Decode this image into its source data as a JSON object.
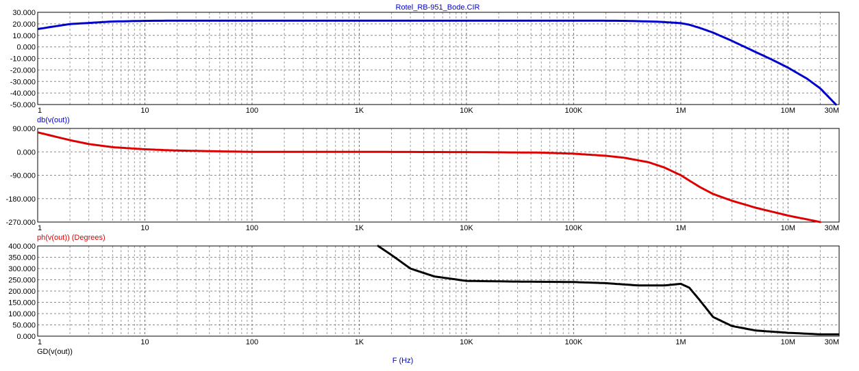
{
  "window": {
    "title": "Rotel_RB-951_Bode.CIR",
    "title_color": "#0000cc",
    "x_axis_label": "F (Hz)",
    "x_axis_label_color": "#0000cc"
  },
  "chart_data": [
    {
      "type": "line",
      "scale_x": "log",
      "xlim": [
        1,
        30000000
      ],
      "x_tick_values": [
        1,
        10,
        100,
        1000,
        10000,
        100000,
        1000000,
        10000000,
        30000000
      ],
      "x_tick_labels": [
        "1",
        "10",
        "100",
        "1K",
        "10K",
        "100K",
        "1M",
        "10M",
        "30M"
      ],
      "ylim": [
        -50,
        30
      ],
      "y_tick_values": [
        30,
        20,
        10,
        0,
        -10,
        -20,
        -30,
        -40,
        -50
      ],
      "y_tick_labels": [
        "30.000",
        "20.000",
        "10.000",
        "0.000",
        "-10.000",
        "-20.000",
        "-30.000",
        "-40.000",
        "-50.000"
      ],
      "grid": true,
      "ylabel": "db(v(out))",
      "series": [
        {
          "color": "#0000cc",
          "x": [
            1,
            2,
            5,
            10,
            30,
            100,
            1000,
            10000,
            100000,
            300000,
            600000,
            1000000,
            1200000,
            1500000,
            2000000,
            3000000,
            5000000,
            7000000,
            10000000,
            15000000,
            20000000,
            28000000
          ],
          "y": [
            15.5,
            19.8,
            22.0,
            22.6,
            22.8,
            22.8,
            22.8,
            22.8,
            22.8,
            22.6,
            21.9,
            20.6,
            19.2,
            16.5,
            12.4,
            5.2,
            -4.5,
            -10.8,
            -18.0,
            -27.5,
            -36.0,
            -50.0
          ]
        }
      ]
    },
    {
      "type": "line",
      "scale_x": "log",
      "xlim": [
        1,
        30000000
      ],
      "x_tick_values": [
        1,
        10,
        100,
        1000,
        10000,
        100000,
        1000000,
        10000000,
        30000000
      ],
      "x_tick_labels": [
        "1",
        "10",
        "100",
        "1K",
        "10K",
        "100K",
        "1M",
        "10M",
        "30M"
      ],
      "ylim": [
        -270,
        90
      ],
      "y_tick_values": [
        90,
        0,
        -90,
        -180,
        -270
      ],
      "y_tick_labels": [
        "90.000",
        "0.000",
        "-90.000",
        "-180.000",
        "-270.000"
      ],
      "grid": true,
      "ylabel": "ph(v(out)) (Degrees)",
      "series": [
        {
          "color": "#dd0000",
          "x": [
            1,
            2,
            3,
            5,
            10,
            20,
            50,
            100,
            1000,
            10000,
            50000,
            100000,
            200000,
            300000,
            500000,
            700000,
            1000000,
            1500000,
            2000000,
            3000000,
            5000000,
            10000000,
            20000000
          ],
          "y": [
            75,
            45,
            30,
            18,
            10,
            5,
            2,
            0,
            0,
            -1,
            -3,
            -7,
            -15,
            -23,
            -40,
            -60,
            -90,
            -135,
            -162,
            -188,
            -215,
            -245,
            -270
          ]
        }
      ]
    },
    {
      "type": "line",
      "scale_x": "log",
      "xlim": [
        1,
        30000000
      ],
      "x_tick_values": [
        1,
        10,
        100,
        1000,
        10000,
        100000,
        1000000,
        10000000,
        30000000
      ],
      "x_tick_labels": [
        "1",
        "10",
        "100",
        "1K",
        "10K",
        "100K",
        "1M",
        "10M",
        "30M"
      ],
      "ylim": [
        0,
        400
      ],
      "y_tick_values": [
        400,
        350,
        300,
        250,
        200,
        150,
        100,
        50,
        0
      ],
      "y_tick_labels": [
        "400.000",
        "350.000",
        "300.000",
        "250.000",
        "200.000",
        "150.000",
        "100.000",
        "50.000",
        "0.000"
      ],
      "grid": true,
      "ylabel": "GD(v(out))",
      "series": [
        {
          "color": "#000000",
          "x": [
            1500,
            2000,
            3000,
            5000,
            10000,
            30000,
            100000,
            200000,
            400000,
            700000,
            1000000,
            1200000,
            1500000,
            2000000,
            3000000,
            5000000,
            10000000,
            20000000,
            30000000
          ],
          "y": [
            400,
            360,
            300,
            265,
            245,
            242,
            240,
            235,
            225,
            225,
            232,
            215,
            160,
            85,
            45,
            25,
            15,
            8,
            8
          ]
        }
      ]
    }
  ]
}
